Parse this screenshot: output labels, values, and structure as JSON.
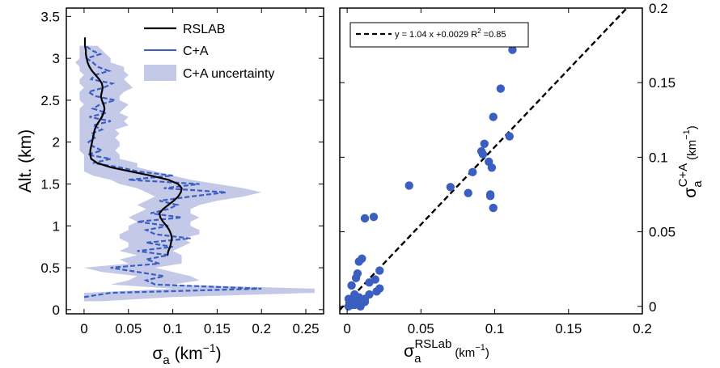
{
  "chart_data": [
    {
      "type": "line",
      "xlabel": "σ",
      "xlabel_sub": "a",
      "xlabel_unit": "(km",
      "xlabel_unit_sup": "−1",
      "xlabel_unit_close": ")",
      "ylabel": "Alt. (km)",
      "xlim": [
        -0.02,
        0.27
      ],
      "ylim": [
        -0.05,
        3.6
      ],
      "xticks": [
        "0",
        "0.05",
        "0.1",
        "0.15",
        "0.2",
        "0.25"
      ],
      "xtick_values": [
        0,
        0.05,
        0.1,
        0.15,
        0.2,
        0.25
      ],
      "yticks": [
        "0",
        "0.5",
        "1",
        "1.5",
        "2",
        "2.5",
        "3",
        "3.5"
      ],
      "ytick_values": [
        0,
        0.5,
        1,
        1.5,
        2,
        2.5,
        3,
        3.5
      ],
      "legend_position": "top-right",
      "legend": [
        "RSLAB",
        "C+A",
        "C+A uncertainty"
      ],
      "colors": {
        "rslab": "#000000",
        "ca": "#3a5fc0",
        "band": "#c5c9e8"
      },
      "series": [
        {
          "name": "RSLAB",
          "y": [
            0.65,
            0.7,
            0.75,
            0.8,
            0.85,
            0.9,
            0.95,
            1.0,
            1.05,
            1.1,
            1.15,
            1.2,
            1.25,
            1.3,
            1.35,
            1.4,
            1.45,
            1.5,
            1.55,
            1.6,
            1.65,
            1.7,
            1.75,
            1.8,
            1.85,
            1.9,
            1.95,
            2.0,
            2.05,
            2.1,
            2.15,
            2.2,
            2.25,
            2.3,
            2.35,
            2.4,
            2.45,
            2.5,
            2.55,
            2.6,
            2.65,
            2.7,
            2.75,
            2.8,
            2.85,
            2.9,
            2.95,
            3.0,
            3.05,
            3.1,
            3.15,
            3.2,
            3.25
          ],
          "x": [
            0.094,
            0.095,
            0.097,
            0.098,
            0.099,
            0.098,
            0.096,
            0.093,
            0.089,
            0.086,
            0.085,
            0.089,
            0.095,
            0.101,
            0.106,
            0.109,
            0.11,
            0.106,
            0.095,
            0.075,
            0.052,
            0.03,
            0.015,
            0.008,
            0.007,
            0.007,
            0.008,
            0.009,
            0.01,
            0.011,
            0.012,
            0.014,
            0.017,
            0.02,
            0.022,
            0.023,
            0.022,
            0.02,
            0.019,
            0.02,
            0.021,
            0.02,
            0.017,
            0.013,
            0.009,
            0.006,
            0.004,
            0.003,
            0.002,
            0.002,
            0.001,
            0.001,
            0.001
          ]
        },
        {
          "name": "C+A",
          "y": [
            0.15,
            0.2,
            0.25,
            0.3,
            0.35,
            0.4,
            0.45,
            0.5,
            0.55,
            0.6,
            0.65,
            0.7,
            0.75,
            0.8,
            0.85,
            0.9,
            0.95,
            1.0,
            1.05,
            1.1,
            1.15,
            1.2,
            1.25,
            1.3,
            1.35,
            1.4,
            1.45,
            1.5,
            1.55,
            1.6,
            1.65,
            1.7,
            1.75,
            1.8,
            1.85,
            1.9,
            1.95,
            2.0,
            2.05,
            2.1,
            2.15,
            2.2,
            2.25,
            2.3,
            2.35,
            2.4,
            2.45,
            2.5,
            2.55,
            2.6,
            2.65,
            2.7,
            2.75,
            2.8,
            2.85,
            2.9,
            2.95,
            3.0,
            3.05,
            3.1,
            3.15
          ],
          "x": [
            0.0,
            0.03,
            0.2,
            0.08,
            0.07,
            0.09,
            0.06,
            0.03,
            0.085,
            0.07,
            0.095,
            0.06,
            0.1,
            0.07,
            0.12,
            0.08,
            0.07,
            0.095,
            0.06,
            0.11,
            0.075,
            0.095,
            0.105,
            0.085,
            0.12,
            0.16,
            0.09,
            0.13,
            0.05,
            0.1,
            0.06,
            0.04,
            0.01,
            0.03,
            0.004,
            0.02,
            0.01,
            0.005,
            0.012,
            0.008,
            0.02,
            0.01,
            0.03,
            0.006,
            0.025,
            0.01,
            0.018,
            0.035,
            0.012,
            0.005,
            0.022,
            0.032,
            0.008,
            0.012,
            0.028,
            0.015,
            0.01,
            0.003,
            0.018,
            0.008,
            0.002
          ]
        }
      ],
      "uncertainty": {
        "name": "C+A uncertainty",
        "y": [
          0.1,
          0.15,
          0.2,
          0.25,
          0.3,
          0.35,
          0.4,
          0.45,
          0.5,
          0.55,
          0.6,
          0.65,
          0.7,
          0.75,
          0.8,
          0.85,
          0.9,
          0.95,
          1.0,
          1.05,
          1.1,
          1.15,
          1.2,
          1.25,
          1.3,
          1.35,
          1.4,
          1.45,
          1.5,
          1.55,
          1.6,
          1.65,
          1.7,
          1.75,
          1.8,
          1.85,
          1.9,
          1.95,
          2.0,
          2.05,
          2.1,
          2.15,
          2.2,
          2.25,
          2.3,
          2.35,
          2.4,
          2.45,
          2.5,
          2.55,
          2.6,
          2.65,
          2.7,
          2.75,
          2.8,
          2.85,
          2.9,
          2.95,
          3.0,
          3.05,
          3.1,
          3.15
        ],
        "low": [
          0.0,
          0.0,
          0.0,
          0.1,
          0.03,
          0.05,
          0.06,
          0.02,
          0.0,
          0.05,
          0.04,
          0.06,
          0.04,
          0.05,
          0.05,
          0.04,
          0.04,
          0.05,
          0.05,
          0.06,
          0.05,
          0.06,
          0.07,
          0.06,
          0.07,
          0.08,
          0.07,
          0.06,
          0.04,
          0.03,
          0.01,
          0.0,
          0.0,
          0.0,
          0.0,
          0.0,
          -0.005,
          -0.005,
          -0.005,
          -0.005,
          -0.005,
          -0.005,
          -0.005,
          -0.005,
          -0.005,
          -0.005,
          -0.005,
          0.0,
          -0.005,
          -0.005,
          -0.005,
          0.0,
          -0.005,
          -0.005,
          0.0,
          -0.005,
          -0.005,
          -0.01,
          -0.005,
          -0.005,
          -0.005,
          -0.005
        ],
        "high": [
          0.02,
          0.1,
          0.26,
          0.26,
          0.1,
          0.13,
          0.12,
          0.1,
          0.08,
          0.11,
          0.11,
          0.11,
          0.1,
          0.11,
          0.12,
          0.11,
          0.13,
          0.13,
          0.12,
          0.12,
          0.13,
          0.12,
          0.12,
          0.13,
          0.15,
          0.18,
          0.2,
          0.18,
          0.15,
          0.12,
          0.1,
          0.08,
          0.06,
          0.06,
          0.04,
          0.04,
          0.035,
          0.04,
          0.04,
          0.035,
          0.04,
          0.035,
          0.05,
          0.045,
          0.05,
          0.04,
          0.045,
          0.05,
          0.04,
          0.04,
          0.045,
          0.055,
          0.05,
          0.045,
          0.05,
          0.045,
          0.045,
          0.03,
          0.03,
          0.025,
          0.02,
          0.015
        ]
      }
    },
    {
      "type": "scatter",
      "xlabel": "σ",
      "xlabel_sub": "a",
      "xlabel_sup": "RSLab",
      "xlabel_unit": "(km",
      "xlabel_unit_sup": "−1",
      "xlabel_unit_close": ")",
      "ylabel": "σ",
      "ylabel_sub": "a",
      "ylabel_sup": "C+A",
      "ylabel_unit": "(km",
      "ylabel_unit_sup": "−1",
      "ylabel_unit_close": ")",
      "y_axis_side": "right",
      "xlim": [
        -0.005,
        0.2
      ],
      "ylim": [
        -0.005,
        0.2
      ],
      "xticks": [
        "0",
        "0.05",
        "0.1",
        "0.15",
        "0.2"
      ],
      "xtick_values": [
        0,
        0.05,
        0.1,
        0.15,
        0.2
      ],
      "yticks": [
        "0",
        "0.05",
        "0.1",
        "0.15",
        "0.2"
      ],
      "ytick_values": [
        0,
        0.05,
        0.1,
        0.15,
        0.2
      ],
      "legend_position": "top-left",
      "legend": [
        "y = 1.04 x +0.0029  R",
        "2",
        " =0.85"
      ],
      "fit": {
        "slope": 1.04,
        "intercept": 0.0029,
        "r2": 0.85
      },
      "colors": {
        "points": "#3a5fc0",
        "fit": "#000000"
      },
      "points": {
        "x": [
          0.112,
          0.104,
          0.11,
          0.099,
          0.093,
          0.091,
          0.092,
          0.096,
          0.098,
          0.085,
          0.07,
          0.082,
          0.097,
          0.097,
          0.099,
          0.042,
          0.012,
          0.018,
          0.022,
          0.01,
          0.008,
          0.007,
          0.006,
          0.003,
          0.015,
          0.019,
          0.022,
          0.005,
          0.008,
          0.012,
          0.02,
          0.015,
          0.004,
          0.003,
          0.002,
          0.001,
          0.002,
          0.005,
          0.007,
          0.009,
          0.012,
          0.001,
          0.003
        ],
        "y": [
          0.172,
          0.146,
          0.114,
          0.127,
          0.109,
          0.104,
          0.102,
          0.097,
          0.093,
          0.09,
          0.08,
          0.076,
          0.075,
          0.074,
          0.066,
          0.081,
          0.059,
          0.06,
          0.024,
          0.032,
          0.03,
          0.022,
          0.019,
          0.014,
          0.016,
          0.018,
          0.012,
          0.008,
          0.006,
          0.005,
          0.01,
          0.008,
          0.003,
          0.002,
          0.001,
          0.0,
          0.004,
          0.001,
          0.002,
          0.0,
          0.003,
          0.005,
          0.001
        ]
      }
    }
  ]
}
